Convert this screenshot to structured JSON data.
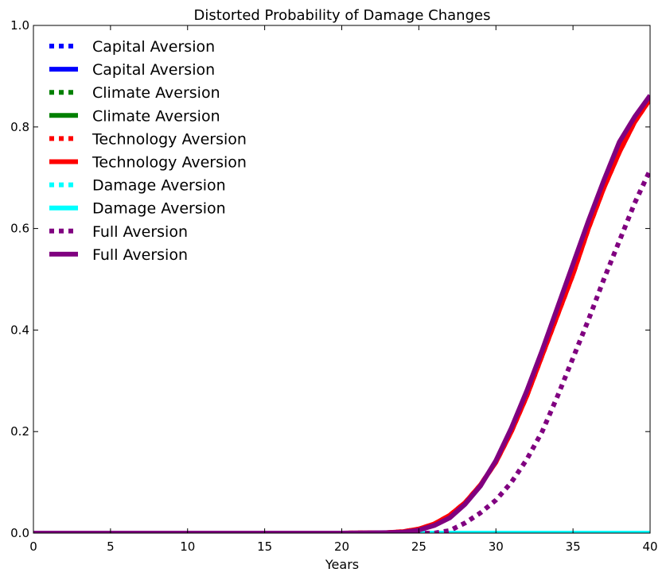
{
  "chart_data": {
    "type": "line",
    "title": "Distorted Probability of Damage Changes",
    "xlabel": "Years",
    "ylabel": "",
    "xlim": [
      0,
      40
    ],
    "ylim": [
      0,
      1.0
    ],
    "xticks": [
      0,
      5,
      10,
      15,
      20,
      25,
      30,
      35,
      40
    ],
    "xtick_labels": [
      "0",
      "5",
      "10",
      "15",
      "20",
      "25",
      "30",
      "35",
      "40"
    ],
    "yticks": [
      0,
      0.2,
      0.4,
      0.6,
      0.8,
      1.0
    ],
    "ytick_labels": [
      "0.0",
      "0.2",
      "0.4",
      "0.6",
      "0.8",
      "1.0"
    ],
    "grid": false,
    "legend_position": "top-left",
    "x": [
      0,
      5,
      10,
      15,
      20,
      23,
      24,
      25,
      26,
      27,
      28,
      29,
      30,
      31,
      32,
      33,
      34,
      35,
      36,
      37,
      38,
      39,
      40
    ],
    "series": [
      {
        "name": "Capital Aversion",
        "style": "dotted",
        "color": "#0000ff",
        "values": [
          0,
          0,
          0,
          0,
          0,
          0,
          0,
          0,
          0,
          0,
          0,
          0,
          0,
          0,
          0,
          0,
          0,
          0,
          0,
          0,
          0,
          0,
          0
        ]
      },
      {
        "name": "Capital Aversion",
        "style": "solid",
        "color": "#0000ff",
        "values": [
          0,
          0,
          0,
          0,
          0,
          0,
          0,
          0,
          0,
          0,
          0,
          0,
          0,
          0,
          0,
          0,
          0,
          0,
          0,
          0,
          0,
          0,
          0
        ]
      },
      {
        "name": "Climate Aversion",
        "style": "dotted",
        "color": "#008000",
        "values": [
          0,
          0,
          0,
          0,
          0,
          0,
          0,
          0,
          0,
          0,
          0,
          0,
          0,
          0,
          0,
          0,
          0,
          0,
          0,
          0,
          0,
          0,
          0
        ]
      },
      {
        "name": "Climate Aversion",
        "style": "solid",
        "color": "#008000",
        "values": [
          0,
          0,
          0,
          0,
          0,
          0,
          0,
          0,
          0,
          0,
          0,
          0,
          0,
          0,
          0,
          0,
          0,
          0,
          0,
          0,
          0,
          0,
          0
        ]
      },
      {
        "name": "Technology Aversion",
        "style": "dotted",
        "color": "#ff0000",
        "values": [
          0,
          0,
          0,
          0,
          0,
          0.001,
          0.003,
          0.008,
          0.018,
          0.035,
          0.06,
          0.095,
          0.14,
          0.2,
          0.27,
          0.35,
          0.43,
          0.51,
          0.6,
          0.68,
          0.75,
          0.81,
          0.855
        ]
      },
      {
        "name": "Technology Aversion",
        "style": "solid",
        "color": "#ff0000",
        "values": [
          0,
          0,
          0,
          0,
          0,
          0.001,
          0.003,
          0.008,
          0.018,
          0.035,
          0.06,
          0.095,
          0.14,
          0.2,
          0.27,
          0.35,
          0.43,
          0.51,
          0.6,
          0.68,
          0.75,
          0.81,
          0.855
        ]
      },
      {
        "name": "Damage Aversion",
        "style": "dotted",
        "color": "#00ffff",
        "values": [
          0,
          0,
          0,
          0,
          0,
          0,
          0,
          0,
          0,
          0,
          0,
          0,
          0,
          0,
          0,
          0,
          0,
          0,
          0,
          0,
          0,
          0,
          0
        ]
      },
      {
        "name": "Damage Aversion",
        "style": "solid",
        "color": "#00ffff",
        "values": [
          0,
          0,
          0,
          0,
          0,
          0,
          0,
          0,
          0,
          0,
          0,
          0,
          0,
          0,
          0,
          0,
          0,
          0,
          0,
          0,
          0,
          0,
          0
        ]
      },
      {
        "name": "Full Aversion",
        "style": "dotted",
        "color": "#800080",
        "values": [
          0,
          0,
          0,
          0,
          0,
          0,
          0,
          0,
          0,
          0.005,
          0.02,
          0.04,
          0.065,
          0.1,
          0.145,
          0.2,
          0.27,
          0.345,
          0.42,
          0.5,
          0.575,
          0.65,
          0.715
        ]
      },
      {
        "name": "Full Aversion",
        "style": "solid",
        "color": "#800080",
        "values": [
          0,
          0,
          0,
          0,
          0,
          0.001,
          0.002,
          0.006,
          0.015,
          0.03,
          0.057,
          0.093,
          0.143,
          0.207,
          0.28,
          0.36,
          0.445,
          0.53,
          0.615,
          0.695,
          0.77,
          0.82,
          0.862
        ]
      }
    ]
  }
}
